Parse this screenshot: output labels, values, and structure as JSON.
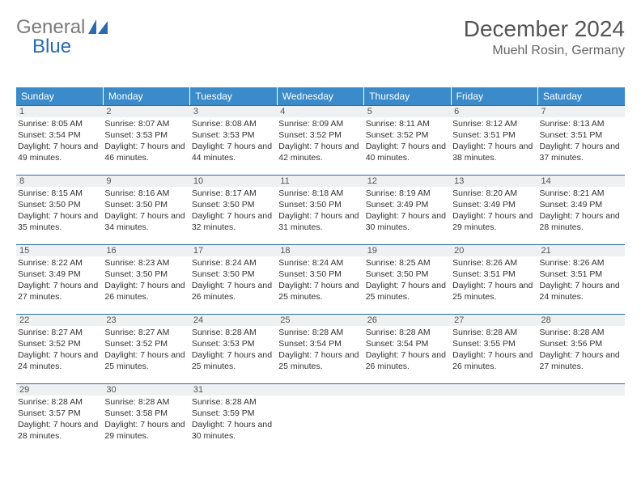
{
  "logo": {
    "word1": "General",
    "word2": "Blue",
    "icon_color": "#2a6bb0"
  },
  "title": {
    "month_year": "December 2024",
    "location": "Muehl Rosin, Germany"
  },
  "header_bg": "#3b8bca",
  "header_fg": "#ffffff",
  "daynum_bg": "#eef0f1",
  "rule_color": "#2a6bb0",
  "columns": [
    "Sunday",
    "Monday",
    "Tuesday",
    "Wednesday",
    "Thursday",
    "Friday",
    "Saturday"
  ],
  "weeks": [
    [
      {
        "n": "1",
        "sr": "8:05 AM",
        "ss": "3:54 PM",
        "dl": "7 hours and 49 minutes."
      },
      {
        "n": "2",
        "sr": "8:07 AM",
        "ss": "3:53 PM",
        "dl": "7 hours and 46 minutes."
      },
      {
        "n": "3",
        "sr": "8:08 AM",
        "ss": "3:53 PM",
        "dl": "7 hours and 44 minutes."
      },
      {
        "n": "4",
        "sr": "8:09 AM",
        "ss": "3:52 PM",
        "dl": "7 hours and 42 minutes."
      },
      {
        "n": "5",
        "sr": "8:11 AM",
        "ss": "3:52 PM",
        "dl": "7 hours and 40 minutes."
      },
      {
        "n": "6",
        "sr": "8:12 AM",
        "ss": "3:51 PM",
        "dl": "7 hours and 38 minutes."
      },
      {
        "n": "7",
        "sr": "8:13 AM",
        "ss": "3:51 PM",
        "dl": "7 hours and 37 minutes."
      }
    ],
    [
      {
        "n": "8",
        "sr": "8:15 AM",
        "ss": "3:50 PM",
        "dl": "7 hours and 35 minutes."
      },
      {
        "n": "9",
        "sr": "8:16 AM",
        "ss": "3:50 PM",
        "dl": "7 hours and 34 minutes."
      },
      {
        "n": "10",
        "sr": "8:17 AM",
        "ss": "3:50 PM",
        "dl": "7 hours and 32 minutes."
      },
      {
        "n": "11",
        "sr": "8:18 AM",
        "ss": "3:50 PM",
        "dl": "7 hours and 31 minutes."
      },
      {
        "n": "12",
        "sr": "8:19 AM",
        "ss": "3:49 PM",
        "dl": "7 hours and 30 minutes."
      },
      {
        "n": "13",
        "sr": "8:20 AM",
        "ss": "3:49 PM",
        "dl": "7 hours and 29 minutes."
      },
      {
        "n": "14",
        "sr": "8:21 AM",
        "ss": "3:49 PM",
        "dl": "7 hours and 28 minutes."
      }
    ],
    [
      {
        "n": "15",
        "sr": "8:22 AM",
        "ss": "3:49 PM",
        "dl": "7 hours and 27 minutes."
      },
      {
        "n": "16",
        "sr": "8:23 AM",
        "ss": "3:50 PM",
        "dl": "7 hours and 26 minutes."
      },
      {
        "n": "17",
        "sr": "8:24 AM",
        "ss": "3:50 PM",
        "dl": "7 hours and 26 minutes."
      },
      {
        "n": "18",
        "sr": "8:24 AM",
        "ss": "3:50 PM",
        "dl": "7 hours and 25 minutes."
      },
      {
        "n": "19",
        "sr": "8:25 AM",
        "ss": "3:50 PM",
        "dl": "7 hours and 25 minutes."
      },
      {
        "n": "20",
        "sr": "8:26 AM",
        "ss": "3:51 PM",
        "dl": "7 hours and 25 minutes."
      },
      {
        "n": "21",
        "sr": "8:26 AM",
        "ss": "3:51 PM",
        "dl": "7 hours and 24 minutes."
      }
    ],
    [
      {
        "n": "22",
        "sr": "8:27 AM",
        "ss": "3:52 PM",
        "dl": "7 hours and 24 minutes."
      },
      {
        "n": "23",
        "sr": "8:27 AM",
        "ss": "3:52 PM",
        "dl": "7 hours and 25 minutes."
      },
      {
        "n": "24",
        "sr": "8:28 AM",
        "ss": "3:53 PM",
        "dl": "7 hours and 25 minutes."
      },
      {
        "n": "25",
        "sr": "8:28 AM",
        "ss": "3:54 PM",
        "dl": "7 hours and 25 minutes."
      },
      {
        "n": "26",
        "sr": "8:28 AM",
        "ss": "3:54 PM",
        "dl": "7 hours and 26 minutes."
      },
      {
        "n": "27",
        "sr": "8:28 AM",
        "ss": "3:55 PM",
        "dl": "7 hours and 26 minutes."
      },
      {
        "n": "28",
        "sr": "8:28 AM",
        "ss": "3:56 PM",
        "dl": "7 hours and 27 minutes."
      }
    ],
    [
      {
        "n": "29",
        "sr": "8:28 AM",
        "ss": "3:57 PM",
        "dl": "7 hours and 28 minutes."
      },
      {
        "n": "30",
        "sr": "8:28 AM",
        "ss": "3:58 PM",
        "dl": "7 hours and 29 minutes."
      },
      {
        "n": "31",
        "sr": "8:28 AM",
        "ss": "3:59 PM",
        "dl": "7 hours and 30 minutes."
      },
      {
        "empty": true
      },
      {
        "empty": true
      },
      {
        "empty": true
      },
      {
        "empty": true
      }
    ]
  ],
  "labels": {
    "sunrise": "Sunrise: ",
    "sunset": "Sunset: ",
    "daylight": "Daylight: "
  }
}
